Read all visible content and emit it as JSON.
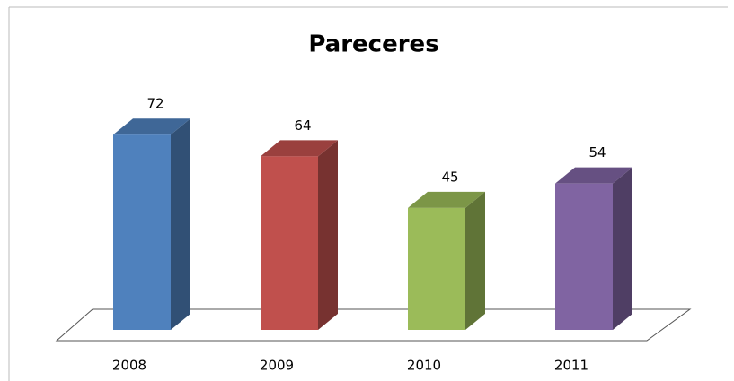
{
  "chart_data": {
    "type": "bar3d",
    "title": "Pareceres",
    "categories": [
      "2008",
      "2009",
      "2010",
      "2011"
    ],
    "values": [
      72,
      64,
      45,
      54
    ],
    "colors": [
      "#4f81bd",
      "#c0504d",
      "#9bbb59",
      "#8064a2"
    ],
    "ylim": [
      0,
      80
    ]
  }
}
